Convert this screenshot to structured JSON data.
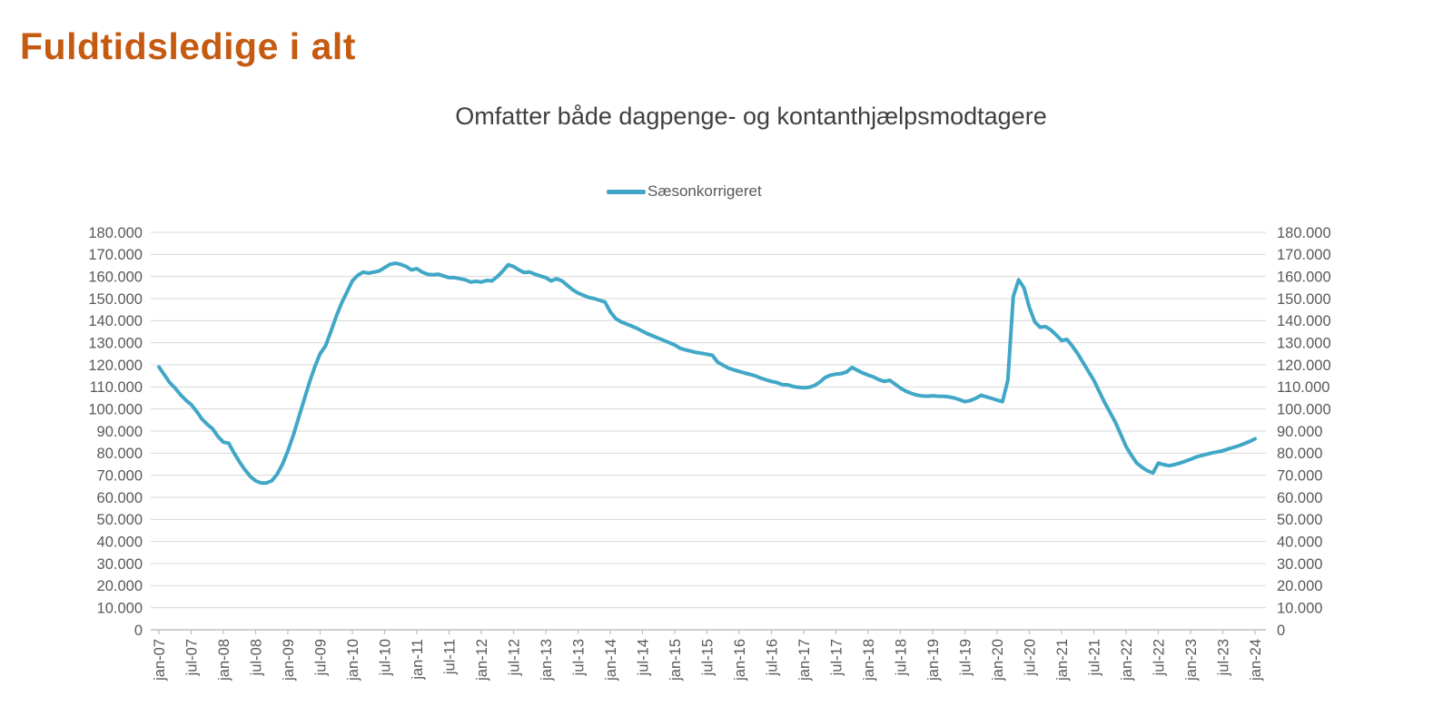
{
  "page": {
    "title": "Fuldtidsledige i alt",
    "title_color": "#C55A11",
    "background_color": "#ffffff"
  },
  "chart": {
    "subtitle": "Omfatter både dagpenge- og kontanthjælpsmodtagere",
    "legend": {
      "label": "Sæsonkorrigeret",
      "color": "#41A7C7"
    },
    "gridline_color": "#D9D9D9",
    "axis_line_color": "#BFBFBF",
    "axis_label_color": "#595959"
  },
  "chart_data": {
    "type": "line",
    "title": "Omfatter både dagpenge- og kontanthjælpsmodtagere",
    "x_frequency": "monthly",
    "x_start": "jan-07",
    "x_end": "jan-24",
    "x_tick_labels": [
      "jan-07",
      "jul-07",
      "jan-08",
      "jul-08",
      "jan-09",
      "jul-09",
      "jan-10",
      "jul-10",
      "jan-11",
      "jul-11",
      "jan-12",
      "jul-12",
      "jan-13",
      "jul-13",
      "jan-14",
      "jul-14",
      "jan-15",
      "jul-15",
      "jan-16",
      "jul-16",
      "jan-17",
      "jul-17",
      "jan-18",
      "jul-18",
      "jan-19",
      "jul-19",
      "jan-20",
      "jul-20",
      "jan-21",
      "jul-21",
      "jan-22",
      "jul-22",
      "jan-23",
      "jul-23",
      "jan-24"
    ],
    "ylim": [
      0,
      180000
    ],
    "y_tick_step": 10000,
    "y_axis_sides": [
      "left",
      "right"
    ],
    "grid": "horizontal",
    "legend_position": "top-center",
    "series": [
      {
        "name": "Sæsonkorrigeret",
        "color": "#41A7C7",
        "values": [
          119000,
          115500,
          112000,
          109500,
          106500,
          104000,
          102000,
          99000,
          95500,
          93000,
          91000,
          87500,
          85000,
          84500,
          80000,
          76000,
          72500,
          69500,
          67500,
          66500,
          66500,
          67500,
          70500,
          75000,
          81000,
          88000,
          96000,
          104000,
          112000,
          119000,
          125000,
          128500,
          135000,
          142000,
          148000,
          153000,
          158000,
          160500,
          162000,
          161500,
          162000,
          162500,
          164000,
          165500,
          166000,
          165500,
          164500,
          163000,
          163500,
          162000,
          161000,
          160800,
          161000,
          160200,
          159500,
          159500,
          159000,
          158500,
          157500,
          157800,
          157500,
          158200,
          158000,
          160000,
          162500,
          165300,
          164500,
          163000,
          161800,
          162000,
          161000,
          160200,
          159500,
          158000,
          159000,
          158000,
          156000,
          154000,
          152500,
          151500,
          150500,
          150000,
          149200,
          148500,
          144000,
          141000,
          139500,
          138500,
          137500,
          136500,
          135200,
          134000,
          133000,
          132000,
          131000,
          130000,
          129000,
          127500,
          126800,
          126200,
          125600,
          125200,
          124800,
          124300,
          121200,
          119800,
          118500,
          117700,
          117000,
          116300,
          115700,
          115000,
          114000,
          113200,
          112500,
          112000,
          111100,
          110900,
          110200,
          109800,
          109600,
          109800,
          110600,
          112200,
          114300,
          115300,
          115800,
          116000,
          116800,
          118800,
          117500,
          116300,
          115300,
          114500,
          113300,
          112500,
          113000,
          111300,
          109500,
          108100,
          107100,
          106300,
          105900,
          105800,
          106000,
          105800,
          105700,
          105500,
          105000,
          104200,
          103300,
          103800,
          104800,
          106200,
          105500,
          104800,
          104000,
          103300,
          113000,
          151000,
          158500,
          154800,
          146000,
          139500,
          137000,
          137300,
          135800,
          133500,
          131000,
          131500,
          128500,
          125000,
          121000,
          117000,
          113000,
          108000,
          103000,
          98500,
          94000,
          88500,
          83000,
          79000,
          75500,
          73500,
          72000,
          71000,
          75500,
          74800,
          74300,
          74800,
          75500,
          76300,
          77200,
          78200,
          78900,
          79500,
          80100,
          80600,
          81100,
          81900,
          82600,
          83400,
          84300,
          85300,
          86500
        ]
      }
    ]
  }
}
